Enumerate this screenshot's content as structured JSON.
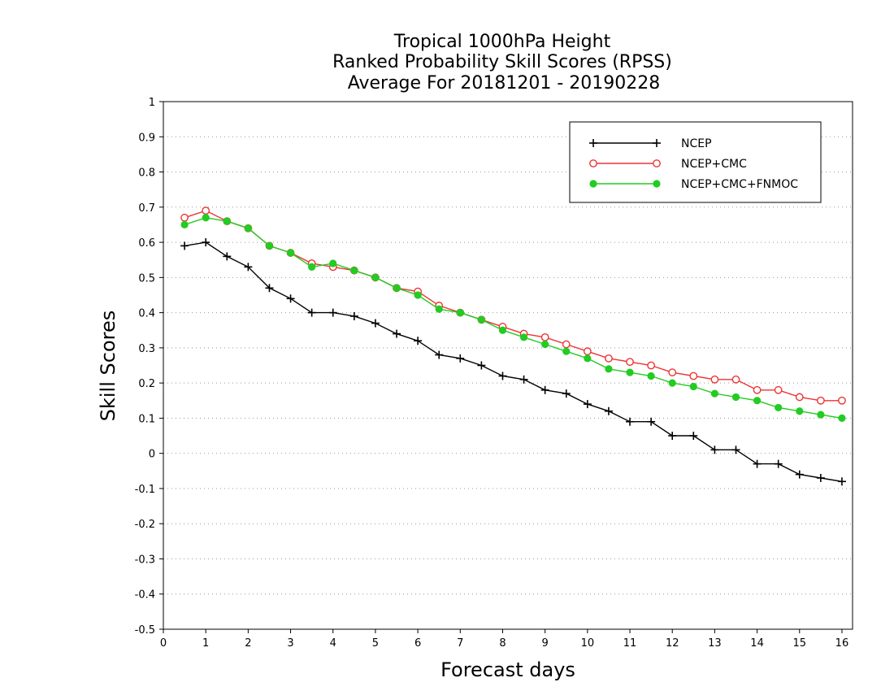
{
  "chart_data": {
    "type": "line",
    "title_lines": [
      "Tropical 1000hPa Height",
      "Ranked Probability Skill Scores (RPSS)",
      "Average For 20181201 - 20190228"
    ],
    "xlabel": "Forecast days",
    "ylabel": "Skill Scores",
    "xlim": [
      0,
      16.25
    ],
    "ylim": [
      -0.5,
      1
    ],
    "xticks": [
      0,
      1,
      2,
      3,
      4,
      5,
      6,
      7,
      8,
      9,
      10,
      11,
      12,
      13,
      14,
      15,
      16
    ],
    "yticks": [
      1,
      0.9,
      0.8,
      0.7,
      0.6,
      0.5,
      0.4,
      0.3,
      0.2,
      0.1,
      0,
      -0.1,
      -0.2,
      -0.3,
      -0.4,
      -0.5
    ],
    "grid": true,
    "legend_position": "top-right",
    "x": [
      0.5,
      1,
      1.5,
      2,
      2.5,
      3,
      3.5,
      4,
      4.5,
      5,
      5.5,
      6,
      6.5,
      7,
      7.5,
      8,
      8.5,
      9,
      9.5,
      10,
      10.5,
      11,
      11.5,
      12,
      12.5,
      13,
      13.5,
      14,
      14.5,
      15,
      15.5,
      16
    ],
    "series": [
      {
        "name": "NCEP",
        "color": "#000000",
        "marker": "plus",
        "values": [
          0.59,
          0.6,
          0.56,
          0.53,
          0.47,
          0.44,
          0.4,
          0.4,
          0.39,
          0.37,
          0.34,
          0.32,
          0.28,
          0.27,
          0.25,
          0.22,
          0.21,
          0.18,
          0.17,
          0.14,
          0.12,
          0.09,
          0.09,
          0.05,
          0.05,
          0.01,
          0.01,
          -0.03,
          -0.03,
          -0.06,
          -0.07,
          -0.08
        ]
      },
      {
        "name": "NCEP+CMC",
        "color": "#ee3333",
        "marker": "open-circle",
        "values": [
          0.67,
          0.69,
          0.66,
          0.64,
          0.59,
          0.57,
          0.54,
          0.53,
          0.52,
          0.5,
          0.47,
          0.46,
          0.42,
          0.4,
          0.38,
          0.36,
          0.34,
          0.33,
          0.31,
          0.29,
          0.27,
          0.26,
          0.25,
          0.23,
          0.22,
          0.21,
          0.21,
          0.18,
          0.18,
          0.16,
          0.15,
          0.15
        ]
      },
      {
        "name": "NCEP+CMC+FNMOC",
        "color": "#22cc22",
        "marker": "filled-circle",
        "values": [
          0.65,
          0.67,
          0.66,
          0.64,
          0.59,
          0.57,
          0.53,
          0.54,
          0.52,
          0.5,
          0.47,
          0.45,
          0.41,
          0.4,
          0.38,
          0.35,
          0.33,
          0.31,
          0.29,
          0.27,
          0.24,
          0.23,
          0.22,
          0.2,
          0.19,
          0.17,
          0.16,
          0.15,
          0.13,
          0.12,
          0.11,
          0.1
        ]
      }
    ]
  }
}
